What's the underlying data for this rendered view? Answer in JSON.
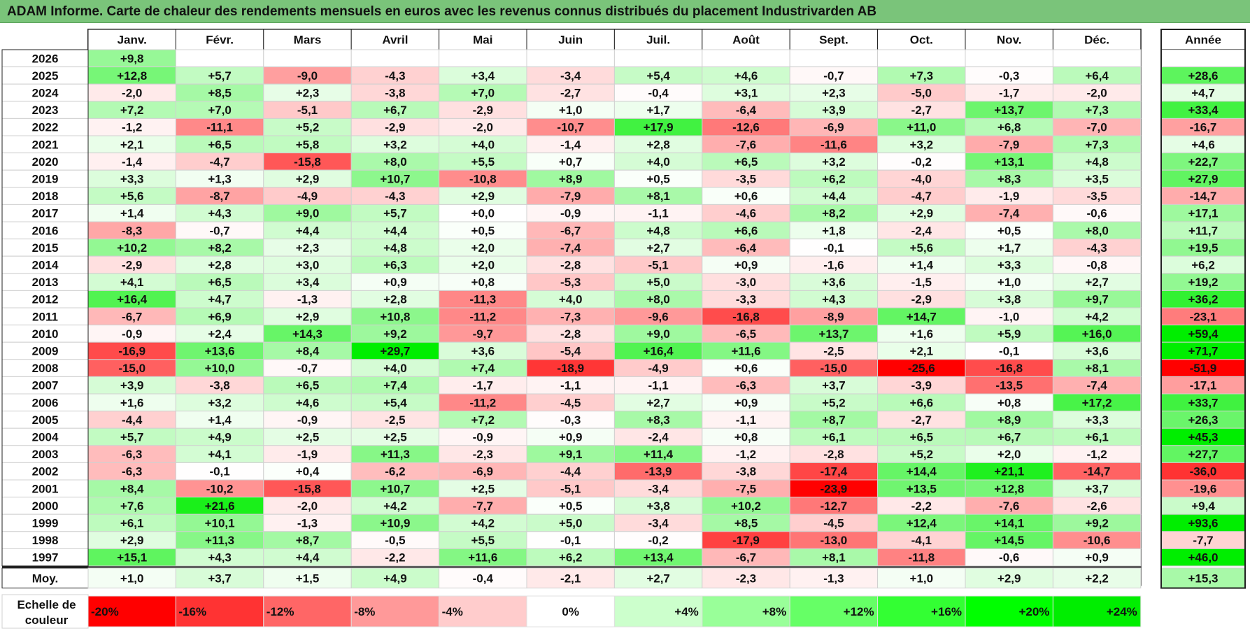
{
  "title": "ADAM Informe. Carte de chaleur des rendements mensuels en euros avec les revenus connus distribués du placement Industrivarden AB",
  "chart_data": {
    "type": "heatmap",
    "title": "ADAM Informe. Carte de chaleur des rendements mensuels en euros avec les revenus connus distribués du placement Industrivarden AB",
    "columns": [
      "Janv.",
      "Févr.",
      "Mars",
      "Avril",
      "Mai",
      "Juin",
      "Juil.",
      "Août",
      "Sept.",
      "Oct.",
      "Nov.",
      "Déc."
    ],
    "year_header": "Année",
    "rows": [
      {
        "label": "2026",
        "values": [
          "+9,8",
          "",
          "",
          "",
          "",
          "",
          "",
          "",
          "",
          "",
          "",
          ""
        ],
        "year": ""
      },
      {
        "label": "2025",
        "values": [
          "+12,8",
          "+5,7",
          "-9,0",
          "-4,3",
          "+3,4",
          "-3,4",
          "+5,4",
          "+4,6",
          "-0,7",
          "+7,3",
          "-0,3",
          "+6,4"
        ],
        "year": "+28,6"
      },
      {
        "label": "2024",
        "values": [
          "-2,0",
          "+8,5",
          "+2,3",
          "-3,8",
          "+7,0",
          "-2,7",
          "-0,4",
          "+3,1",
          "+2,3",
          "-5,0",
          "-1,7",
          "-2,0"
        ],
        "year": "+4,7"
      },
      {
        "label": "2023",
        "values": [
          "+7,2",
          "+7,0",
          "-5,1",
          "+6,7",
          "-2,9",
          "+1,0",
          "+1,7",
          "-6,4",
          "+3,9",
          "-2,7",
          "+13,7",
          "+7,3"
        ],
        "year": "+33,4"
      },
      {
        "label": "2022",
        "values": [
          "-1,2",
          "-11,1",
          "+5,2",
          "-2,9",
          "-2,0",
          "-10,7",
          "+17,9",
          "-12,6",
          "-6,9",
          "+11,0",
          "+6,8",
          "-7,0"
        ],
        "year": "-16,7"
      },
      {
        "label": "2021",
        "values": [
          "+2,1",
          "+6,5",
          "+5,8",
          "+3,2",
          "+4,0",
          "-1,4",
          "+2,8",
          "-7,6",
          "-11,6",
          "+3,2",
          "-7,9",
          "+7,3"
        ],
        "year": "+4,6"
      },
      {
        "label": "2020",
        "values": [
          "-1,4",
          "-4,7",
          "-15,8",
          "+8,0",
          "+5,5",
          "+0,7",
          "+4,0",
          "+6,5",
          "+3,2",
          "-0,2",
          "+13,1",
          "+4,8"
        ],
        "year": "+22,7"
      },
      {
        "label": "2019",
        "values": [
          "+3,3",
          "+1,3",
          "+2,9",
          "+10,7",
          "-10,8",
          "+8,9",
          "+0,5",
          "-3,5",
          "+6,2",
          "-4,0",
          "+8,3",
          "+3,5"
        ],
        "year": "+27,9"
      },
      {
        "label": "2018",
        "values": [
          "+5,6",
          "-8,7",
          "-4,9",
          "-4,3",
          "+2,9",
          "-7,9",
          "+8,1",
          "+0,6",
          "+4,4",
          "-4,7",
          "-1,9",
          "-3,5"
        ],
        "year": "-14,7"
      },
      {
        "label": "2017",
        "values": [
          "+1,4",
          "+4,3",
          "+9,0",
          "+5,7",
          "+0,0",
          "-0,9",
          "-1,1",
          "-4,6",
          "+8,2",
          "+2,9",
          "-7,4",
          "-0,6"
        ],
        "year": "+17,1"
      },
      {
        "label": "2016",
        "values": [
          "-8,3",
          "-0,7",
          "+4,4",
          "+4,4",
          "+0,5",
          "-6,7",
          "+4,8",
          "+6,6",
          "+1,8",
          "-2,4",
          "+0,5",
          "+8,0"
        ],
        "year": "+11,7"
      },
      {
        "label": "2015",
        "values": [
          "+10,2",
          "+8,2",
          "+2,3",
          "+4,8",
          "+2,0",
          "-7,4",
          "+2,7",
          "-6,4",
          "-0,1",
          "+5,6",
          "+1,7",
          "-4,3"
        ],
        "year": "+19,5"
      },
      {
        "label": "2014",
        "values": [
          "-2,9",
          "+2,8",
          "+3,0",
          "+6,3",
          "+2,0",
          "-2,8",
          "-5,1",
          "+0,9",
          "-1,6",
          "+1,4",
          "+3,3",
          "-0,8"
        ],
        "year": "+6,2"
      },
      {
        "label": "2013",
        "values": [
          "+4,1",
          "+6,5",
          "+3,4",
          "+0,9",
          "+0,8",
          "-5,3",
          "+5,0",
          "-3,0",
          "+3,6",
          "-1,5",
          "+1,0",
          "+2,7"
        ],
        "year": "+19,2"
      },
      {
        "label": "2012",
        "values": [
          "+16,4",
          "+4,7",
          "-1,3",
          "+2,8",
          "-11,3",
          "+4,0",
          "+8,0",
          "-3,3",
          "+4,3",
          "-2,9",
          "+3,8",
          "+9,7"
        ],
        "year": "+36,2"
      },
      {
        "label": "2011",
        "values": [
          "-6,7",
          "+6,9",
          "+2,9",
          "+10,8",
          "-11,2",
          "-7,3",
          "-9,6",
          "-16,8",
          "-8,9",
          "+14,7",
          "-1,0",
          "+4,2"
        ],
        "year": "-23,1"
      },
      {
        "label": "2010",
        "values": [
          "-0,9",
          "+2,4",
          "+14,3",
          "+9,2",
          "-9,7",
          "-2,8",
          "+9,0",
          "-6,5",
          "+13,7",
          "+1,6",
          "+5,9",
          "+16,0"
        ],
        "year": "+59,4"
      },
      {
        "label": "2009",
        "values": [
          "-16,9",
          "+13,6",
          "+8,4",
          "+29,7",
          "+3,6",
          "-5,4",
          "+16,4",
          "+11,6",
          "-2,5",
          "+2,1",
          "-0,1",
          "+3,6"
        ],
        "year": "+71,7"
      },
      {
        "label": "2008",
        "values": [
          "-15,0",
          "+10,0",
          "-0,7",
          "+4,0",
          "+7,4",
          "-18,9",
          "-4,9",
          "+0,6",
          "-15,0",
          "-25,6",
          "-16,8",
          "+8,1"
        ],
        "year": "-51,9"
      },
      {
        "label": "2007",
        "values": [
          "+3,9",
          "-3,8",
          "+6,5",
          "+7,4",
          "-1,7",
          "-1,1",
          "-1,1",
          "-6,3",
          "+3,7",
          "-3,9",
          "-13,5",
          "-7,4"
        ],
        "year": "-17,1"
      },
      {
        "label": "2006",
        "values": [
          "+1,6",
          "+3,2",
          "+4,6",
          "+5,4",
          "-11,2",
          "-4,5",
          "+2,7",
          "+0,9",
          "+5,2",
          "+6,6",
          "+0,8",
          "+17,2"
        ],
        "year": "+33,7"
      },
      {
        "label": "2005",
        "values": [
          "-4,4",
          "+1,4",
          "-0,9",
          "-2,5",
          "+7,2",
          "-0,3",
          "+8,3",
          "-1,1",
          "+8,7",
          "-2,7",
          "+8,9",
          "+3,3"
        ],
        "year": "+26,3"
      },
      {
        "label": "2004",
        "values": [
          "+5,7",
          "+4,9",
          "+2,5",
          "+2,5",
          "-0,9",
          "+0,9",
          "-2,4",
          "+0,8",
          "+6,1",
          "+6,5",
          "+6,7",
          "+6,1"
        ],
        "year": "+45,3"
      },
      {
        "label": "2003",
        "values": [
          "-6,3",
          "+4,1",
          "-1,9",
          "+11,3",
          "-2,3",
          "+9,1",
          "+11,4",
          "-1,2",
          "-2,8",
          "+5,2",
          "+2,0",
          "-1,2"
        ],
        "year": "+27,7"
      },
      {
        "label": "2002",
        "values": [
          "-6,3",
          "-0,1",
          "+0,4",
          "-6,2",
          "-6,9",
          "-4,4",
          "-13,9",
          "-3,8",
          "-17,4",
          "+14,4",
          "+21,1",
          "-14,7"
        ],
        "year": "-36,0"
      },
      {
        "label": "2001",
        "values": [
          "+8,4",
          "-10,2",
          "-15,8",
          "+10,7",
          "+2,5",
          "-5,1",
          "-3,4",
          "-7,5",
          "-23,9",
          "+13,5",
          "+12,8",
          "+3,7"
        ],
        "year": "-19,6"
      },
      {
        "label": "2000",
        "values": [
          "+7,6",
          "+21,6",
          "-2,0",
          "+4,2",
          "-7,7",
          "+0,5",
          "+3,8",
          "+10,2",
          "-12,7",
          "-2,2",
          "-7,6",
          "-2,6"
        ],
        "year": "+9,4"
      },
      {
        "label": "1999",
        "values": [
          "+6,1",
          "+10,1",
          "-1,3",
          "+10,9",
          "+4,2",
          "+5,0",
          "-3,4",
          "+8,5",
          "-4,5",
          "+12,4",
          "+14,1",
          "+9,2"
        ],
        "year": "+93,6"
      },
      {
        "label": "1998",
        "values": [
          "+2,9",
          "+11,3",
          "+8,7",
          "-0,5",
          "+5,5",
          "-0,1",
          "-0,2",
          "-17,9",
          "-13,0",
          "-4,1",
          "+14,5",
          "-10,6"
        ],
        "year": "-7,7"
      },
      {
        "label": "1997",
        "values": [
          "+15,1",
          "+4,3",
          "+4,4",
          "-2,2",
          "+11,6",
          "+6,2",
          "+13,4",
          "-6,7",
          "+8,1",
          "-11,8",
          "-0,6",
          "+0,9"
        ],
        "year": "+46,0"
      }
    ],
    "average_row": {
      "label": "Moy.",
      "values": [
        "+1,0",
        "+3,7",
        "+1,5",
        "+4,9",
        "-0,4",
        "-2,1",
        "+2,7",
        "-2,3",
        "-1,3",
        "+1,0",
        "+2,9",
        "+2,2"
      ],
      "year": "+15,3"
    },
    "scale": {
      "label_line1": "Echelle de",
      "label_line2": "couleur",
      "steps": [
        {
          "label": "-20%",
          "value": -20,
          "color": "#ff0000"
        },
        {
          "label": "-16%",
          "value": -16,
          "color": "#ff3333"
        },
        {
          "label": "-12%",
          "value": -12,
          "color": "#ff6666"
        },
        {
          "label": "-8%",
          "value": -8,
          "color": "#ff9999"
        },
        {
          "label": "-4%",
          "value": -4,
          "color": "#ffcccc"
        },
        {
          "label": "0%",
          "value": 0,
          "color": "#ffffff"
        },
        {
          "label": "+4%",
          "value": 4,
          "color": "#ccffcc"
        },
        {
          "label": "+8%",
          "value": 8,
          "color": "#99ff99"
        },
        {
          "label": "+12%",
          "value": 12,
          "color": "#66ff66"
        },
        {
          "label": "+16%",
          "value": 16,
          "color": "#33ff33"
        },
        {
          "label": "+20%",
          "value": 20,
          "color": "#00ff00"
        },
        {
          "label": "+24%",
          "value": 24,
          "color": "#00ee00"
        }
      ]
    }
  }
}
